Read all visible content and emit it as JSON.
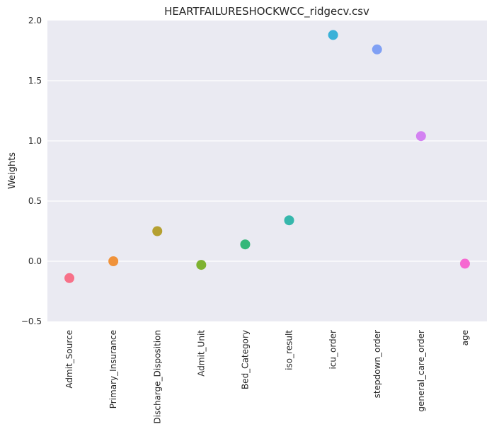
{
  "chart_data": {
    "type": "scatter",
    "title": "HEARTFAILURESHOCKWCC_ridgecv.csv",
    "xlabel": "",
    "ylabel": "Weights",
    "ylim": [
      -0.5,
      2.0
    ],
    "yticks": [
      "−0.5",
      "0.0",
      "0.5",
      "1.0",
      "1.5",
      "2.0"
    ],
    "categories": [
      "Admit_Source",
      "Primary_Insurance",
      "Discharge_Disposition",
      "Admit_Unit",
      "Bed_Category",
      "iso_result",
      "icu_order",
      "stepdown_order",
      "general_care_order",
      "age"
    ],
    "values": [
      -0.14,
      0.0,
      0.25,
      -0.03,
      0.14,
      0.34,
      1.88,
      1.76,
      1.04,
      -0.02
    ],
    "colors": [
      "#f77189",
      "#f0923a",
      "#b5a031",
      "#7eb231",
      "#35b779",
      "#36b7ac",
      "#3ab1d8",
      "#80a0f4",
      "#d382f2",
      "#f669d1"
    ],
    "grid": true
  }
}
